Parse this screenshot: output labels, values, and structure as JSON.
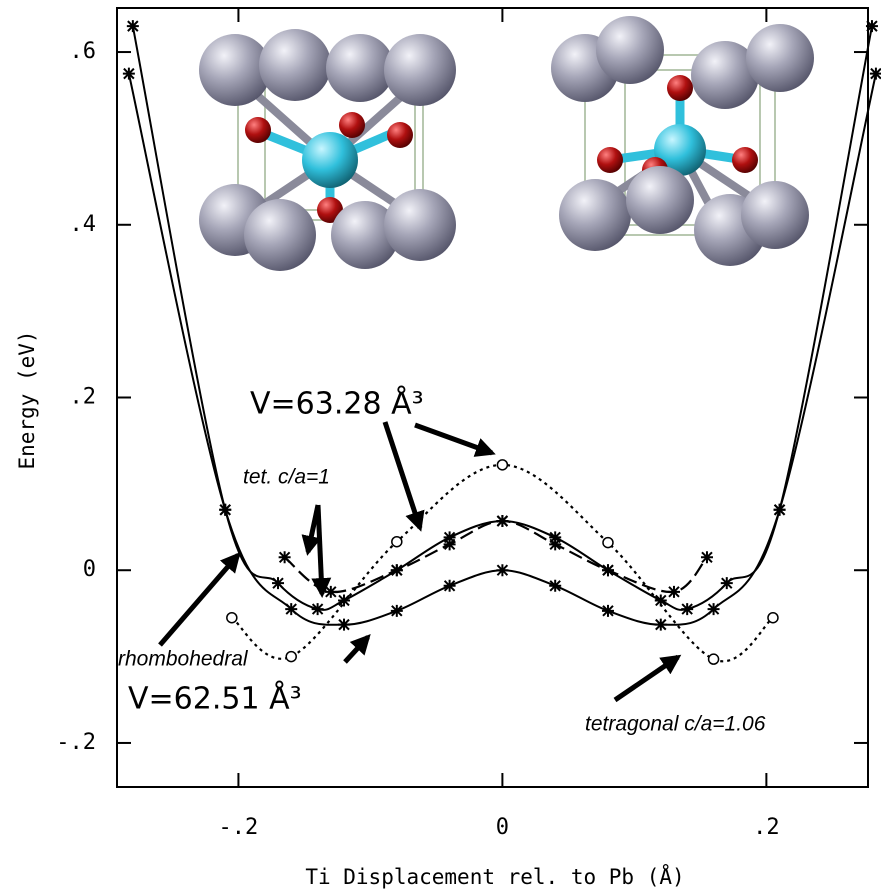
{
  "chart_data": {
    "type": "line",
    "x_label": "Ti Displacement rel. to Pb (Å)",
    "y_label": "Energy (eV)",
    "xlim": [
      -0.292,
      0.277
    ],
    "ylim": [
      -0.251,
      0.651
    ],
    "xticks": [
      {
        "value": -0.2,
        "label": "-.2"
      },
      0,
      {
        "value": 0.2,
        "label": ".2"
      }
    ],
    "yticks": [
      {
        "value": -0.2,
        "label": "-.2"
      },
      0,
      {
        "value": 0.2,
        "label": ".2"
      },
      {
        "value": 0.4,
        "label": ".4"
      },
      {
        "value": 0.6,
        "label": ".6"
      }
    ],
    "series": [
      {
        "color": "#000000",
        "style": "solid",
        "marker": "*",
        "x": [
          -0.28,
          -0.21,
          -0.17,
          -0.14,
          -0.12,
          -0.08,
          -0.04,
          0,
          0.04,
          0.08,
          0.12,
          0.14,
          0.17,
          0.21,
          0.28
        ],
        "values": [
          0.63,
          0.07,
          -0.015,
          -0.045,
          -0.035,
          0.0,
          0.038,
          0.057,
          0.038,
          0.0,
          -0.035,
          -0.045,
          -0.015,
          0.07,
          0.63
        ]
      },
      {
        "color": "#000000",
        "style": "solid",
        "marker": "*",
        "x": [
          -0.283,
          -0.21,
          -0.16,
          -0.12,
          -0.08,
          -0.04,
          0,
          0.04,
          0.08,
          0.12,
          0.16,
          0.21,
          0.283
        ],
        "values": [
          0.575,
          0.07,
          -0.045,
          -0.063,
          -0.047,
          -0.018,
          0.0,
          -0.018,
          -0.047,
          -0.063,
          -0.045,
          0.07,
          0.575
        ]
      },
      {
        "color": "#000000",
        "style": "dashed",
        "marker": "*",
        "x": [
          -0.165,
          -0.13,
          -0.08,
          -0.04,
          0,
          0.04,
          0.08,
          0.13,
          0.155
        ],
        "values": [
          0.015,
          -0.025,
          0.0,
          0.03,
          0.057,
          0.03,
          0.0,
          -0.025,
          0.015
        ]
      },
      {
        "color": "#000000",
        "style": "dotted",
        "marker": "o",
        "x": [
          -0.205,
          -0.16,
          -0.08,
          0,
          0.08,
          0.16,
          0.205
        ],
        "values": [
          -0.055,
          -0.1,
          0.033,
          0.122,
          0.032,
          -0.103,
          -0.055
        ]
      }
    ],
    "annotations": [
      {
        "text": "V=63.28 Å³"
      },
      {
        "text": "tet. c/a=1"
      },
      {
        "text": "rhombohedral"
      },
      {
        "text": "V=62.51 Å³"
      },
      {
        "text": "tetragonal c/a=1.06"
      }
    ]
  }
}
